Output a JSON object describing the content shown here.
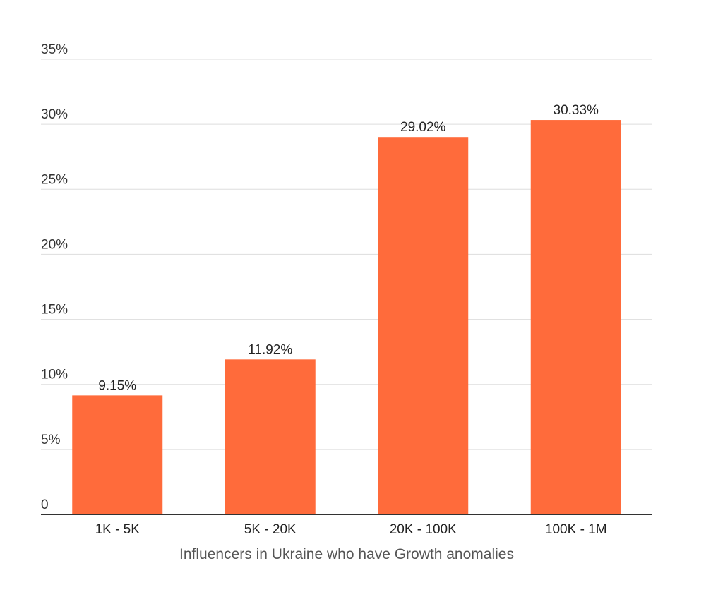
{
  "chart_data": {
    "type": "bar",
    "categories": [
      "1K - 5K",
      "5K - 20K",
      "20K - 100K",
      "100K - 1M"
    ],
    "values": [
      9.15,
      11.92,
      29.02,
      30.33
    ],
    "data_labels": [
      "9.15%",
      "11.92%",
      "29.02%",
      "30.33%"
    ],
    "title": "",
    "xlabel": "Influencers in Ukraine who have Growth anomalies",
    "ylabel": "",
    "ylim": [
      0,
      35
    ],
    "yticks": [
      0,
      5,
      10,
      15,
      20,
      25,
      30,
      35
    ],
    "ytick_labels": [
      "0",
      "5%",
      "10%",
      "15%",
      "20%",
      "25%",
      "30%",
      "35%"
    ],
    "grid": true,
    "legend": "none",
    "colors": {
      "bar": "#ff6b3b",
      "gridline": "#dddddd",
      "baseline": "#333333"
    }
  }
}
